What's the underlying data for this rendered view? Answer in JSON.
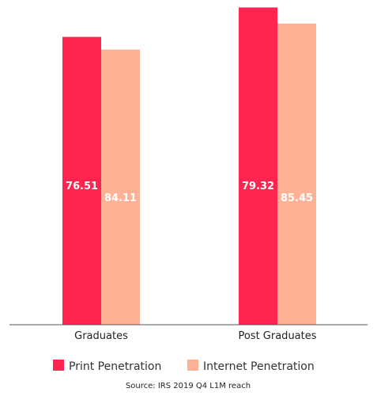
{
  "chart_data": {
    "type": "bar",
    "categories": [
      "Graduates",
      "Post Graduates"
    ],
    "series": [
      {
        "name": "Print Penetration",
        "values": [
          76.51,
          79.32
        ],
        "labels": [
          "76.51",
          "79.32"
        ],
        "color": "#ff2550"
      },
      {
        "name": "Internet Penetration",
        "values": [
          84.11,
          85.45
        ],
        "labels": [
          "84.11",
          "85.45"
        ],
        "color": "#ffb196"
      }
    ],
    "grid": false,
    "legend": "bottom-center",
    "source": "Source: IRS 2019 Q4 L1M reach"
  }
}
